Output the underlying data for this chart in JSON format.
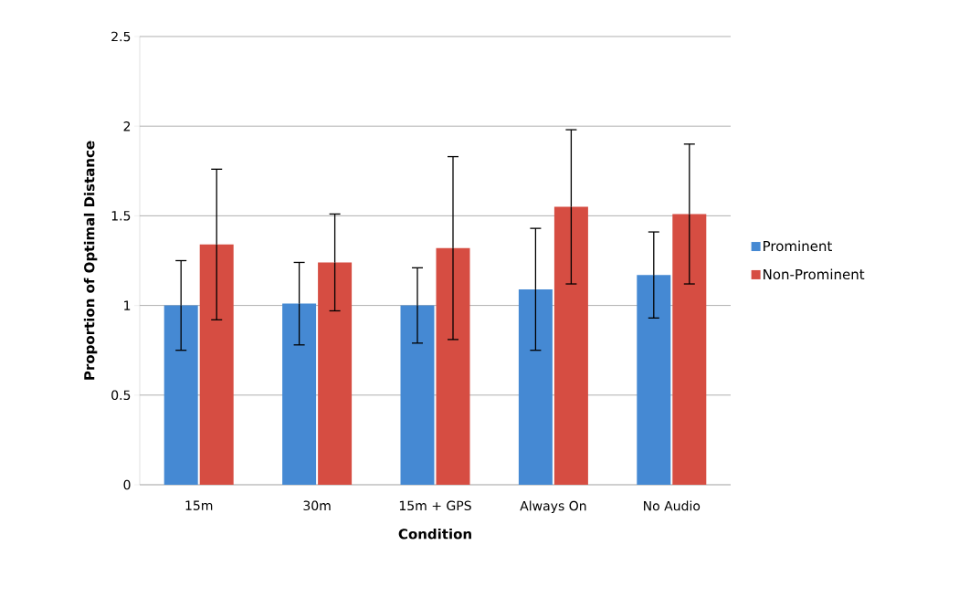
{
  "chart_data": {
    "type": "bar",
    "xlabel": "Condition",
    "ylabel": "Proportion of Optimal Distance",
    "categories": [
      "15m",
      "30m",
      "15m + GPS",
      "Always On",
      "No Audio"
    ],
    "series": [
      {
        "name": "Prominent",
        "color": "#4589d3",
        "values": [
          1.0,
          1.01,
          1.0,
          1.09,
          1.17
        ],
        "errors": [
          0.25,
          0.23,
          0.21,
          0.34,
          0.24
        ]
      },
      {
        "name": "Non-Prominent",
        "color": "#d64d42",
        "values": [
          1.34,
          1.24,
          1.32,
          1.55,
          1.51
        ],
        "errors": [
          0.42,
          0.27,
          0.51,
          0.43,
          0.39
        ]
      }
    ],
    "ylim": [
      0,
      2.5
    ],
    "yticks": [
      0,
      0.5,
      1,
      1.5,
      2,
      2.5
    ],
    "grid": "y",
    "legend": "right"
  }
}
